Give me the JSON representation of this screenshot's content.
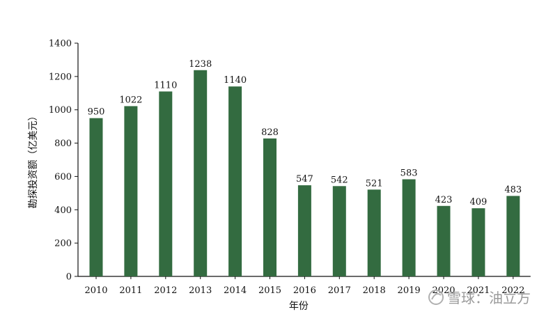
{
  "chart_data": {
    "type": "bar",
    "categories": [
      "2010",
      "2011",
      "2012",
      "2013",
      "2014",
      "2015",
      "2016",
      "2017",
      "2018",
      "2019",
      "2020",
      "2021",
      "2022"
    ],
    "values": [
      950,
      1022,
      1110,
      1238,
      1140,
      828,
      547,
      542,
      521,
      583,
      423,
      409,
      483
    ],
    "xlabel": "年份",
    "ylabel": "勘探投资额（亿美元）",
    "ylim": [
      0,
      1400
    ],
    "yticks": [
      0,
      200,
      400,
      600,
      800,
      1000,
      1200,
      1400
    ],
    "bar_color": "#336b40",
    "grid": false
  },
  "watermark": {
    "text": "雪球：油立方",
    "icon": "snowball-logo-icon"
  }
}
